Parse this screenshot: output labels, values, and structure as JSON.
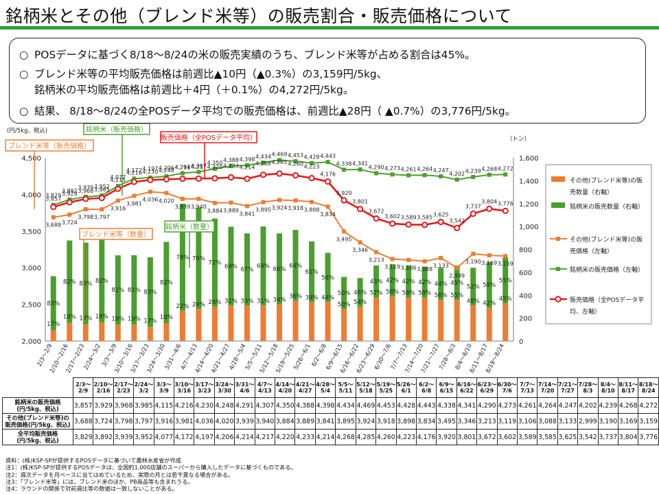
{
  "page": {
    "title": "銘柄米とその他（ブレンド米等）の販売割合・販売価格について"
  },
  "summary": [
    {
      "marker": "○",
      "lines": [
        "POSデータに基づく8/18～8/24の米の販売実績のうち、ブレンド米等が占める割合は45%。"
      ]
    },
    {
      "marker": "○",
      "lines": [
        "ブレンド米等の平均販売価格は前週比▲10円（▲0.3%）の3,159円/5kg、",
        "銘柄米の平均販売価格は前週比＋4円（＋0.1%）の4,272円/5kg。"
      ]
    },
    {
      "marker": "○",
      "lines": [
        "結果、 8/18～8/24の全POSデータ平均での販売価格は、前週比▲28円（ ▲0.7%）の3,776円/5kg。"
      ]
    }
  ],
  "colors": {
    "orange": "#ed7d31",
    "green": "#4aa02c",
    "red": "#e81818",
    "title_rule": "#2f9e3b"
  },
  "chart_data": {
    "type": "bar",
    "left_axis": {
      "unit": "(円/5kg、税込)",
      "min": 2000,
      "max": 4500,
      "ticks": [
        "2,000",
        "2,500",
        "3,000",
        "3,500",
        "4,000",
        "4,500"
      ]
    },
    "right_axis": {
      "unit": "（トン）",
      "min": 0,
      "max": 1600,
      "ticks": [
        "0",
        "200",
        "400",
        "600",
        "800",
        "1,000",
        "1,200",
        "1,400",
        "1,600"
      ]
    },
    "categories": [
      "2/3～2/9",
      "2/10～2/16",
      "2/17～2/23",
      "2/24～3/2",
      "3/3～3/9",
      "3/10～3/16",
      "3/17～3/23",
      "3/24～3/30",
      "3/31～4/6",
      "4/7～4/13",
      "4/14～4/20",
      "4/21～4/27",
      "4/28～5/4",
      "5/5～5/11",
      "5/12～5/18",
      "5/19～5/25",
      "5/26～6/1",
      "6/2～6/8",
      "6/9～6/15",
      "6/16～6/22",
      "6/23～6/29",
      "6/30～7/6",
      "7/7～7/13",
      "7/14～7/20",
      "7/21～7/27",
      "7/28～8/3",
      "8/4～8/10",
      "8/11～8/17",
      "8/18～8/24"
    ],
    "series": [
      {
        "name": "その他(ブレンド米等)の販売数量（右軸）",
        "kind": "bar-stack-bottom",
        "axis": "right",
        "color": "#ed7d31",
        "values": [
          96,
          158,
          146,
          161,
          142,
          142,
          124,
          156,
          264,
          280,
          300,
          310,
          310,
          310,
          320,
          350,
          340,
          340,
          280,
          300,
          380,
          390,
          380,
          380,
          360,
          360,
          310,
          290,
          330
        ],
        "pct_labels": [
          "17%",
          "18%",
          "17%",
          "18%",
          "19%",
          "19%",
          "17%",
          "18%",
          "22%",
          "24%",
          "28%",
          "31%",
          "33%",
          "31%",
          "34%",
          "36%",
          "39%",
          "44%",
          "50%",
          "54%",
          "57%",
          "58%",
          "58%",
          "58%",
          "56%",
          "55%",
          "48%",
          "42%",
          "45%"
        ]
      },
      {
        "name": "銘柄米の販売数量（右軸）",
        "kind": "bar-stack-top",
        "axis": "right",
        "color": "#4aa02c",
        "values": [
          470,
          720,
          713,
          735,
          606,
          607,
          607,
          710,
          935,
          885,
          770,
          688,
          630,
          690,
          620,
          620,
          530,
          430,
          280,
          250,
          280,
          280,
          280,
          270,
          280,
          300,
          330,
          400,
          400
        ],
        "pct_labels": [
          "83%",
          "82%",
          "83%",
          "82%",
          "81%",
          "81%",
          "83%",
          "82%",
          "78%",
          "76%",
          "72%",
          "69%",
          "67%",
          "69%",
          "66%",
          "64%",
          "61%",
          "56%",
          "50%",
          "46%",
          "43%",
          "42%",
          "42%",
          "42%",
          "44%",
          "45%",
          "52%",
          "58%",
          "55%"
        ]
      },
      {
        "name": "その他(ブレンド米等)の販売価格（左軸）",
        "kind": "line",
        "axis": "left",
        "color": "#ed7d31",
        "values": [
          3688,
          3724,
          3798,
          3797,
          3916,
          3981,
          4036,
          4020,
          3939,
          3940,
          3884,
          3889,
          3841,
          3895,
          3924,
          3918,
          3898,
          3834,
          3495,
          3346,
          3213,
          3119,
          3106,
          3088,
          3133,
          2999,
          3190,
          3169,
          3159
        ]
      },
      {
        "name": "銘柄米の販売価格（左軸）",
        "kind": "line",
        "axis": "left",
        "color": "#4aa02c",
        "values": [
          3857,
          3929,
          3968,
          3985,
          4115,
          4216,
          4230,
          4248,
          4291,
          4307,
          4350,
          4388,
          4398,
          4434,
          4469,
          4453,
          4428,
          4443,
          4338,
          4341,
          4290,
          4273,
          4261,
          4264,
          4247,
          4202,
          4239,
          4268,
          4272
        ]
      },
      {
        "name": "販売価格（全POSデータ平均、左軸）",
        "kind": "line",
        "axis": "left",
        "color": "#e81818",
        "values": [
          3829,
          3892,
          3939,
          3952,
          4077,
          4172,
          4197,
          4206,
          4214,
          4217,
          4220,
          4233,
          4214,
          4268,
          4285,
          4260,
          4223,
          4176,
          3920,
          3801,
          3672,
          3602,
          3589,
          3585,
          3625,
          3542,
          3737,
          3804,
          3776
        ]
      }
    ],
    "point_labels": {
      "green": [
        "3,857",
        "3,929",
        "3,968",
        "3,985",
        "4,115",
        "4,216",
        "4,230",
        "4,248",
        "4,291",
        "4,307",
        "4,350",
        "4,388",
        "4,398",
        "4,434",
        "4,469",
        "4,453",
        "4,428",
        "4,443",
        "4,338",
        "4,341",
        "4,290",
        "4,273",
        "4,261",
        "4,264",
        "4,247",
        "4,202",
        "4,239",
        "4,268",
        "4,272"
      ],
      "orange": [
        "3,688",
        "3,724",
        "3,798",
        "3,797",
        "3,916",
        "3,981",
        "4,036",
        "4,020",
        "3,939",
        "3,940",
        "3,884",
        "3,889",
        "3,841",
        "3,895",
        "3,924",
        "3,918",
        "3,898",
        "3,834",
        "3,495",
        "3,346",
        "3,213",
        "3,119",
        "3,106",
        "3,088",
        "3,133",
        "2,999",
        "3,190",
        "3,169",
        "3,159"
      ],
      "red": [
        "3,829",
        "3,892",
        "3,939",
        "3,952",
        "4,077",
        "4,172",
        "4,197",
        "4,206",
        "4,214",
        "4,217",
        "4,220",
        "4,233",
        "4,214",
        "4,268",
        "4,285",
        "4,260",
        "4,223",
        "4,176",
        "3,920",
        "3,801",
        "3,672",
        "3,602",
        "3,589",
        "3,585",
        "3,625",
        "3,542",
        "3,737",
        "3,804",
        "3,776"
      ]
    },
    "callouts": {
      "green_price": "銘柄米（販売価格）",
      "orange_price": "ブレンド米等（販売価格）",
      "red_price": "販売価格（全POSデータ平均）",
      "green_qty": "銘柄米（数量）",
      "orange_qty": "ブレンド米等（数量）"
    },
    "legend": [
      {
        "kind": "bar",
        "color": "#ed7d31",
        "label": [
          "その他(ブレンド米等)の販",
          "売数量（右軸）"
        ]
      },
      {
        "kind": "bar",
        "color": "#4aa02c",
        "label": [
          "銘柄米の販売数量（右軸）"
        ]
      },
      {
        "kind": "line",
        "color": "#ed7d31",
        "label": [
          "その他(ブレンド米等)の販",
          "売価格（左軸）"
        ]
      },
      {
        "kind": "line",
        "color": "#4aa02c",
        "label": [
          "銘柄米の販売価格（左軸）"
        ]
      },
      {
        "kind": "avg",
        "color": "#e81818",
        "label": [
          "販売価格（全POSデータ平",
          "均、左軸）"
        ]
      }
    ]
  },
  "table": {
    "headers": [
      [
        "2/3～",
        "2/9"
      ],
      [
        "2/10～",
        "2/16"
      ],
      [
        "2/17～",
        "2/23"
      ],
      [
        "2/24～",
        "3/2"
      ],
      [
        "3/3～",
        "3/9"
      ],
      [
        "3/10～",
        "3/16"
      ],
      [
        "3/17～",
        "3/23"
      ],
      [
        "3/24～",
        "3/30"
      ],
      [
        "3/31～",
        "4/6"
      ],
      [
        "4/7～",
        "4/13"
      ],
      [
        "4/14～",
        "4/20"
      ],
      [
        "4/21～",
        "4/27"
      ],
      [
        "4/28～",
        "5/4"
      ],
      [
        "5/5～",
        "5/11"
      ],
      [
        "5/12～",
        "5/18"
      ],
      [
        "5/19～",
        "5/25"
      ],
      [
        "5/26～",
        "6/1"
      ],
      [
        "6/2～",
        "6/8"
      ],
      [
        "6/9～",
        "6/15"
      ],
      [
        "6/16～",
        "6/22"
      ],
      [
        "6/23～",
        "6/29"
      ],
      [
        "6/30～",
        "7/6"
      ],
      [
        "7/7～",
        "7/13"
      ],
      [
        "7/14～",
        "7/20"
      ],
      [
        "7/21～",
        "7/27"
      ],
      [
        "7/28～",
        "8/3"
      ],
      [
        "8/4～",
        "8/10"
      ],
      [
        "8/11～",
        "8/17"
      ],
      [
        "8/18～",
        "8/24"
      ]
    ],
    "rows": [
      {
        "label": [
          "銘柄米の販売価格",
          "(円/5kg、税込)"
        ],
        "values": [
          "3,857",
          "3,929",
          "3,968",
          "3,985",
          "4,115",
          "4,216",
          "4,230",
          "4,248",
          "4,291",
          "4,307",
          "4,350",
          "4,388",
          "4,398",
          "4,434",
          "4,469",
          "4,453",
          "4,428",
          "4,443",
          "4,338",
          "4,341",
          "4,290",
          "4,273",
          "4,261",
          "4,264",
          "4,247",
          "4,202",
          "4,239",
          "4,268",
          "4,272"
        ]
      },
      {
        "label": [
          "その他(ブレンド米等)の",
          "販売価格(円/5kg、税込)"
        ],
        "values": [
          "3,688",
          "3,724",
          "3,798",
          "3,797",
          "3,916",
          "3,981",
          "4,036",
          "4,020",
          "3,939",
          "3,940",
          "3,884",
          "3,889",
          "3,841",
          "3,895",
          "3,924",
          "3,918",
          "3,898",
          "3,834",
          "3,495",
          "3,346",
          "3,213",
          "3,119",
          "3,106",
          "3,088",
          "3,133",
          "2,999",
          "3,190",
          "3,169",
          "3,159"
        ]
      },
      {
        "label": [
          "全平均販売価格",
          "(円/5kg、税込)"
        ],
        "values": [
          "3,829",
          "3,892",
          "3,939",
          "3,952",
          "4,077",
          "4,172",
          "4,197",
          "4,206",
          "4,214",
          "4,217",
          "4,220",
          "4,233",
          "4,214",
          "4,268",
          "4,285",
          "4,260",
          "4,223",
          "4,176",
          "3,920",
          "3,801",
          "3,672",
          "3,602",
          "3,589",
          "3,585",
          "3,625",
          "3,542",
          "3,737",
          "3,804",
          "3,776"
        ]
      }
    ]
  },
  "notes": [
    "資料：(株)KSP-SPが提供するPOSデータに基づいて農林水産省が作成",
    "注1：(株)KSP-SPが提供するPOSデータは、全国約1,000店舗のスーパーから購入したデータに基づくものである。",
    "注2：週次データを月ベースに当てはめているため、実際の月とは若干異なる場合がある。",
    "注3：「ブレンド米等」には、ブレンド米のほか、PB商品等も含まれうる。",
    "注4：ラウンドの関係で対前週比等の数値は一致しないことがある。"
  ]
}
